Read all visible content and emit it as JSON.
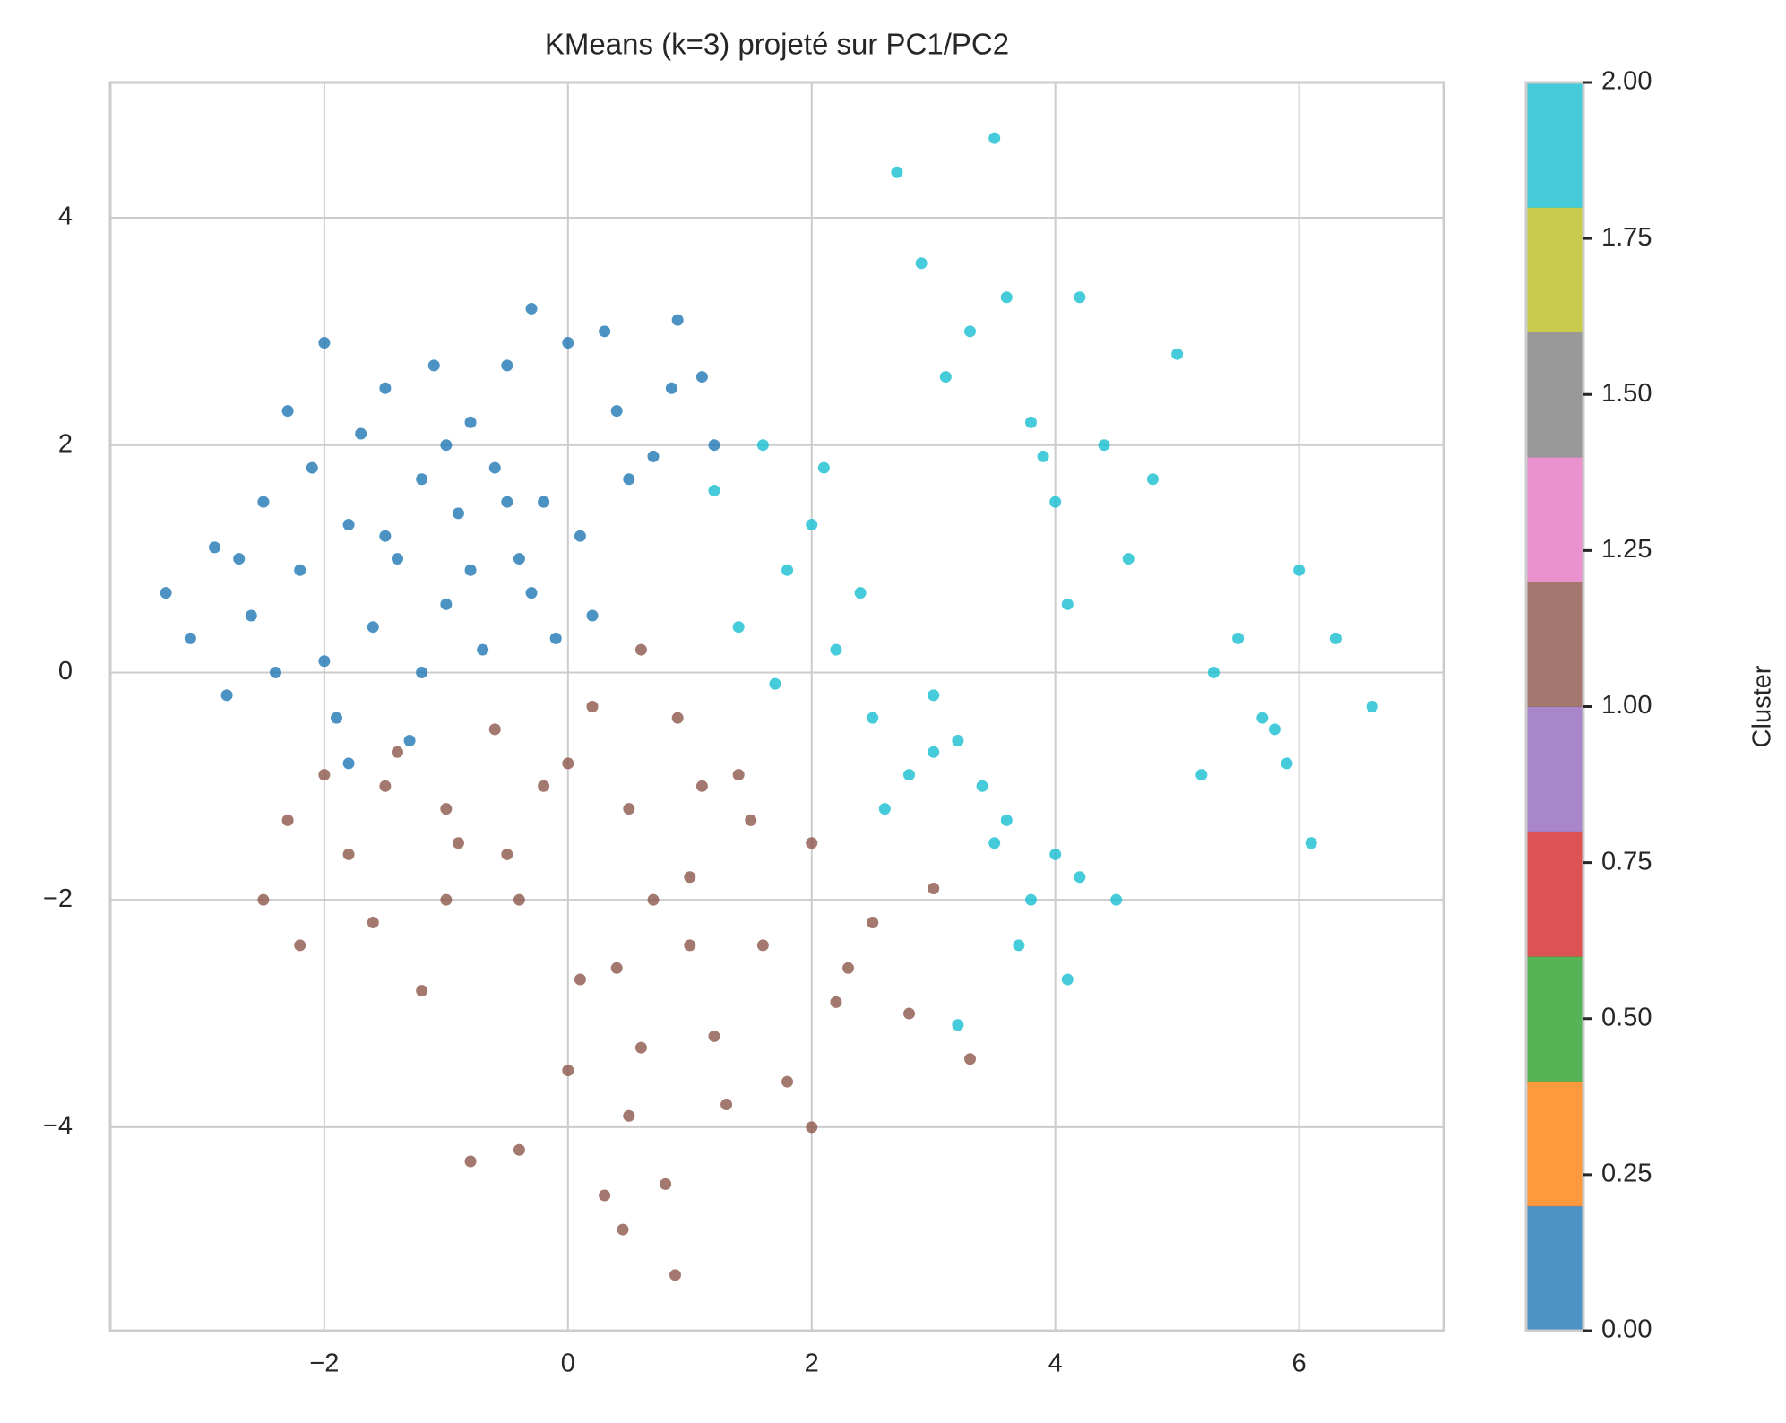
{
  "chart_data": {
    "type": "scatter",
    "title": "KMeans (k=3) projeté sur PC1/PC2",
    "xlim": [
      -3.757,
      7.187
    ],
    "ylim": [
      -5.79,
      5.19
    ],
    "xticks": [
      {
        "value": -2,
        "label": "−2"
      },
      0,
      2,
      4,
      6
    ],
    "yticks": [
      {
        "value": -4,
        "label": "−4"
      },
      {
        "value": -2,
        "label": "−2"
      },
      0,
      2,
      4
    ],
    "grid": true,
    "series": [
      {
        "color": "#1f77b4",
        "x": [
          -3.3,
          -3.1,
          -2.9,
          -2.8,
          -2.6,
          -2.5,
          -2.4,
          -2.3,
          -2.2,
          -2.1,
          -2.0,
          -1.9,
          -1.8,
          -1.7,
          -1.6,
          -1.5,
          -1.4,
          -1.3,
          -1.2,
          -1.1,
          -1.0,
          -0.9,
          -0.8,
          -0.7,
          -0.6,
          -0.5,
          -0.4,
          -0.3,
          -0.2,
          -0.1,
          0.0,
          0.1,
          0.2,
          0.3,
          0.5,
          0.7,
          0.9,
          1.1,
          1.2,
          -2.0,
          -1.5,
          -1.0,
          -0.5,
          -1.8,
          -1.2,
          -0.8,
          -2.7,
          -0.3,
          0.4,
          0.85
        ],
        "values": [
          0.7,
          0.3,
          1.1,
          -0.2,
          0.5,
          1.5,
          0.0,
          2.3,
          0.9,
          1.8,
          2.9,
          -0.4,
          1.3,
          2.1,
          0.4,
          2.5,
          1.0,
          -0.6,
          1.7,
          2.7,
          0.6,
          1.4,
          2.2,
          0.2,
          1.8,
          2.7,
          1.0,
          3.2,
          1.5,
          0.3,
          2.9,
          1.2,
          0.5,
          3.0,
          1.7,
          1.9,
          3.1,
          2.6,
          2.0,
          0.1,
          1.2,
          2.0,
          1.5,
          -0.8,
          0.0,
          0.9,
          1.0,
          0.7,
          2.3,
          2.5
        ]
      },
      {
        "color": "#8c564b",
        "x": [
          -2.5,
          -2.3,
          -2.0,
          -1.8,
          -1.6,
          -1.4,
          -1.2,
          -1.0,
          -0.8,
          -0.6,
          -0.4,
          -0.2,
          0.0,
          0.2,
          0.4,
          0.6,
          0.8,
          1.0,
          1.2,
          1.4,
          1.6,
          1.8,
          2.0,
          2.2,
          2.5,
          2.8,
          3.0,
          3.3,
          -1.5,
          -1.0,
          -0.5,
          0.0,
          0.5,
          1.0,
          1.5,
          2.0,
          0.3,
          0.7,
          0.9,
          0.5,
          -0.9,
          -0.4,
          0.1,
          0.6,
          1.1,
          1.3,
          2.3,
          -2.2,
          0.45,
          0.88
        ],
        "values": [
          -2.0,
          -1.3,
          -0.9,
          -1.6,
          -2.2,
          -0.7,
          -2.8,
          -1.2,
          -4.3,
          -0.5,
          -2.0,
          -1.0,
          -3.5,
          -0.3,
          -2.6,
          0.2,
          -4.5,
          -1.8,
          -3.2,
          -0.9,
          -2.4,
          -3.6,
          -1.5,
          -2.9,
          -2.2,
          -3.0,
          -1.9,
          -3.4,
          -1.0,
          -2.0,
          -1.6,
          -0.8,
          -3.9,
          -2.4,
          -1.3,
          -4.0,
          -4.6,
          -2.0,
          -0.4,
          -1.2,
          -1.5,
          -4.2,
          -2.7,
          -3.3,
          -1.0,
          -3.8,
          -2.6,
          -2.4,
          -4.9,
          -5.3
        ]
      },
      {
        "color": "#17becf",
        "x": [
          1.2,
          1.4,
          1.6,
          1.8,
          2.0,
          2.2,
          2.4,
          1.7,
          2.1,
          2.5,
          2.8,
          3.0,
          3.2,
          2.9,
          3.3,
          3.5,
          2.7,
          3.1,
          3.6,
          3.8,
          4.0,
          4.2,
          3.9,
          4.4,
          4.6,
          4.1,
          4.8,
          5.0,
          5.3,
          5.5,
          5.7,
          5.9,
          6.1,
          6.3,
          6.6,
          5.8,
          6.0,
          5.2,
          3.6,
          3.8,
          4.0,
          4.2,
          3.7,
          4.1,
          3.4,
          3.2,
          2.6,
          3.0,
          4.5,
          3.5
        ],
        "values": [
          1.6,
          0.4,
          2.0,
          0.9,
          1.3,
          0.2,
          0.7,
          -0.1,
          1.8,
          -0.4,
          -0.9,
          -0.2,
          -0.6,
          3.6,
          3.0,
          4.7,
          4.4,
          2.6,
          3.3,
          2.2,
          1.5,
          3.3,
          1.9,
          2.0,
          1.0,
          0.6,
          1.7,
          2.8,
          0.0,
          0.3,
          -0.4,
          -0.8,
          -1.5,
          0.3,
          -0.3,
          -0.5,
          0.9,
          -0.9,
          -1.3,
          -2.0,
          -1.6,
          -1.8,
          -2.4,
          -2.7,
          -1.0,
          -3.1,
          -1.2,
          -0.7,
          -2.0,
          -1.5
        ]
      }
    ],
    "colorbar": {
      "label": "Cluster",
      "lim": [
        0,
        2
      ],
      "colors": [
        "#1f77b4",
        "#ff7f0e",
        "#2ca02c",
        "#d62728",
        "#9467bd",
        "#8c564b",
        "#e377c2",
        "#7f7f7f",
        "#bcbd22",
        "#17becf"
      ],
      "ticks": [
        {
          "value": 0,
          "label": "0.00"
        },
        {
          "value": 0.25,
          "label": "0.25"
        },
        {
          "value": 0.5,
          "label": "0.50"
        },
        {
          "value": 0.75,
          "label": "0.75"
        },
        {
          "value": 1,
          "label": "1.00"
        },
        {
          "value": 1.25,
          "label": "1.25"
        },
        {
          "value": 1.5,
          "label": "1.50"
        },
        {
          "value": 1.75,
          "label": "1.75"
        },
        {
          "value": 2,
          "label": "2.00"
        }
      ]
    }
  }
}
